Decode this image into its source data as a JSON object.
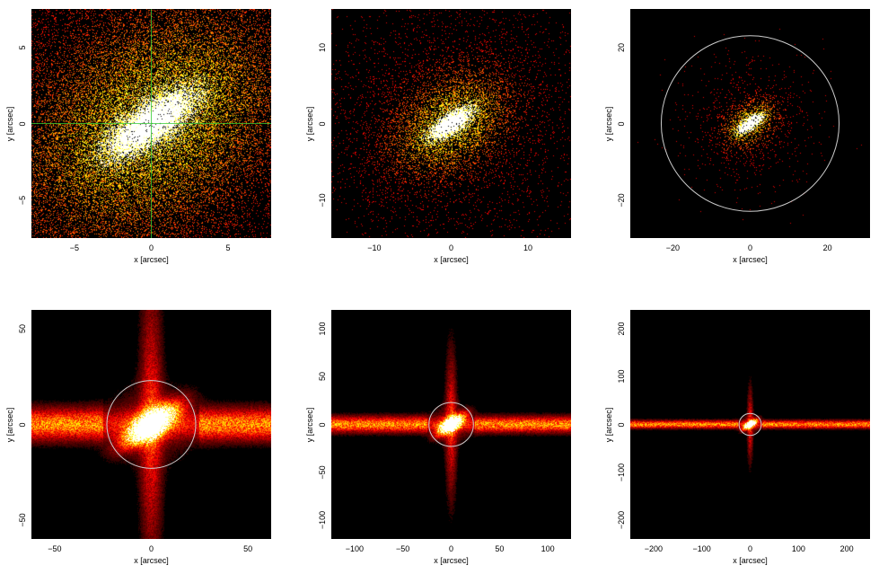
{
  "chart_data": [
    {
      "type": "heatmap",
      "xlabel": "x [arcsec]",
      "ylabel": "y [arcsec]",
      "xlim": [
        -7.8,
        7.8
      ],
      "ylim": [
        -7.5,
        7.5
      ],
      "xticks": [
        -5,
        0,
        5
      ],
      "yticks": [
        -5,
        0,
        5
      ],
      "crosshair": {
        "x": 0,
        "y": 0,
        "color": "#33cc33"
      },
      "circle_radius": null,
      "source": {
        "core_sigma": 0.8,
        "halo_sigma": 5.0,
        "elongation_angle_deg": 35,
        "streak": false
      }
    },
    {
      "type": "heatmap",
      "xlabel": "x [arcsec]",
      "ylabel": "y [arcsec]",
      "xlim": [
        -15.6,
        15.6
      ],
      "ylim": [
        -15,
        15
      ],
      "xticks": [
        -10,
        0,
        10
      ],
      "yticks": [
        -10,
        0,
        10
      ],
      "crosshair": null,
      "circle_radius": null,
      "source": {
        "core_sigma": 0.8,
        "halo_sigma": 4.5,
        "elongation_angle_deg": 35,
        "streak": false
      }
    },
    {
      "type": "heatmap",
      "xlabel": "x [arcsec]",
      "ylabel": "y [arcsec]",
      "xlim": [
        -31,
        31
      ],
      "ylim": [
        -30,
        30
      ],
      "xticks": [
        -20,
        0,
        20
      ],
      "yticks": [
        -20,
        0,
        20
      ],
      "crosshair": null,
      "circle_radius": 23,
      "source": {
        "core_sigma": 1.0,
        "halo_sigma": 4.0,
        "elongation_angle_deg": 35,
        "streak": false
      }
    },
    {
      "type": "heatmap",
      "xlabel": "x [arcsec]",
      "ylabel": "y [arcsec]",
      "xlim": [
        -62,
        62
      ],
      "ylim": [
        -60,
        60
      ],
      "xticks": [
        -50,
        0,
        50
      ],
      "yticks": [
        -50,
        0,
        50
      ],
      "crosshair": null,
      "circle_radius": 23,
      "source": {
        "core_sigma": 4.0,
        "halo_sigma": 6.0,
        "elongation_angle_deg": 35,
        "streak": true
      }
    },
    {
      "type": "heatmap",
      "xlabel": "x [arcsec]",
      "ylabel": "y [arcsec]",
      "xlim": [
        -124,
        124
      ],
      "ylim": [
        -120,
        120
      ],
      "xticks": [
        -100,
        -50,
        0,
        50,
        100
      ],
      "yticks": [
        -100,
        -50,
        0,
        50,
        100
      ],
      "crosshair": null,
      "circle_radius": 23,
      "source": {
        "core_sigma": 4.0,
        "halo_sigma": 6.0,
        "elongation_angle_deg": 35,
        "streak": true
      }
    },
    {
      "type": "heatmap",
      "xlabel": "x [arcsec]",
      "ylabel": "y [arcsec]",
      "xlim": [
        -248,
        248
      ],
      "ylim": [
        -240,
        240
      ],
      "xticks": [
        -200,
        -100,
        0,
        100,
        200
      ],
      "yticks": [
        -200,
        -100,
        0,
        100,
        200
      ],
      "crosshair": null,
      "circle_radius": 23,
      "source": {
        "core_sigma": 4.0,
        "halo_sigma": 6.0,
        "elongation_angle_deg": 35,
        "streak": true
      }
    }
  ],
  "colors": {
    "background": "#000000",
    "colormap": "hot",
    "circle": "#cccccc",
    "crosshair": "#33cc33"
  }
}
